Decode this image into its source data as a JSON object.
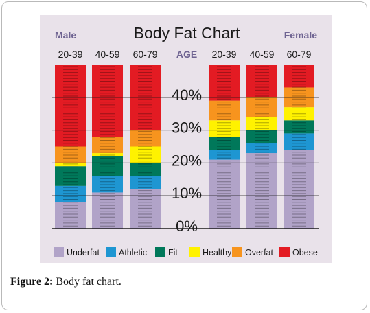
{
  "chart_data": {
    "type": "bar",
    "stacked": true,
    "title": "Body Fat Chart",
    "left_group_label": "Male",
    "right_group_label": "Female",
    "center_label": "AGE",
    "groups": [
      {
        "name": "Male",
        "categories": [
          "20-39",
          "40-59",
          "60-79"
        ]
      },
      {
        "name": "Female",
        "categories": [
          "20-39",
          "40-59",
          "60-79"
        ]
      }
    ],
    "y_ticks": [
      "0%",
      "10%",
      "20%",
      "30%",
      "40%"
    ],
    "ylim": [
      0,
      50
    ],
    "series": [
      {
        "name": "Underfat",
        "color": "#b1a3c8",
        "values": [
          8,
          11,
          12,
          21,
          23,
          24
        ]
      },
      {
        "name": "Athletic",
        "color": "#1e96d2",
        "values": [
          5,
          5,
          4,
          3,
          3,
          5
        ]
      },
      {
        "name": "Fit",
        "color": "#00785a",
        "values": [
          6,
          6,
          4,
          4,
          4,
          4
        ]
      },
      {
        "name": "Healthy",
        "color": "#fff200",
        "values": [
          1,
          1,
          5,
          5,
          4,
          4
        ]
      },
      {
        "name": "Overfat",
        "color": "#f7941e",
        "values": [
          5,
          5,
          5,
          6,
          6,
          6
        ]
      },
      {
        "name": "Obese",
        "color": "#e31b23",
        "values": [
          25,
          22,
          20,
          11,
          10,
          7
        ]
      }
    ],
    "legend_position": "bottom",
    "colors": {
      "background": "#e9e2ea",
      "group_label": "#6e6391",
      "title": "#1a1a1a"
    }
  },
  "caption": {
    "label": "Figure 2:",
    "text": "Body fat chart."
  }
}
